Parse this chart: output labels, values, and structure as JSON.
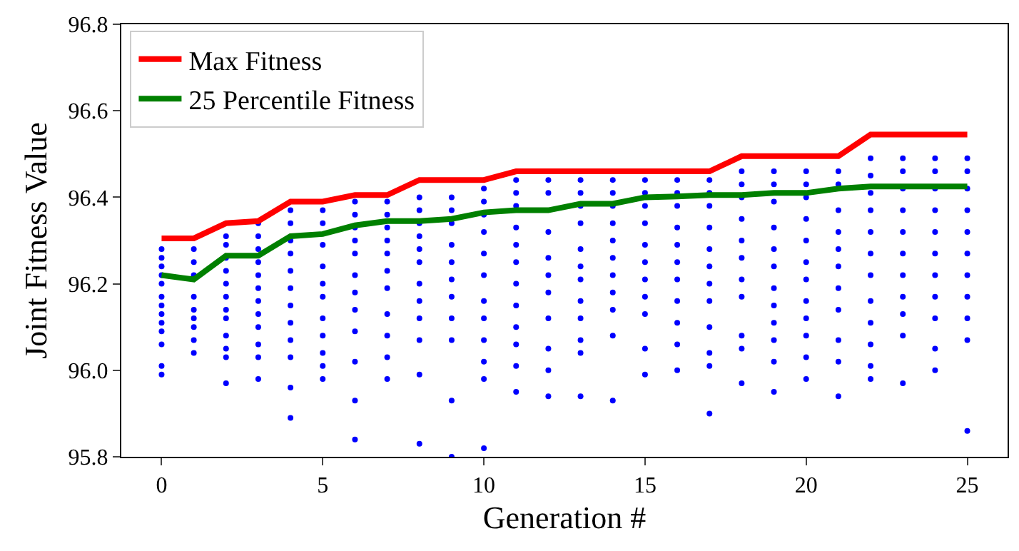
{
  "chart_data": {
    "type": "line",
    "xlabel": "Generation #",
    "ylabel": "Joint Fitness Value",
    "xlim": [
      -1.25,
      26.25
    ],
    "xticks": [
      0,
      5,
      10,
      15,
      20,
      25
    ],
    "ylim": [
      95.8,
      96.8
    ],
    "yticks": [
      {
        "value": 95.8,
        "label": "95.8"
      },
      {
        "value": 96.0,
        "label": "96.0"
      },
      {
        "value": 96.2,
        "label": "96.2"
      },
      {
        "value": 96.4,
        "label": "96.4"
      },
      {
        "value": 96.6,
        "label": "96.6"
      },
      {
        "value": 96.8,
        "label": "96.8"
      }
    ],
    "grid": false,
    "legend": "top left",
    "line_style": "solid",
    "series": [
      {
        "type": "scatter",
        "marker": "circle",
        "color": "#0000ff",
        "x": [
          0,
          0,
          0,
          0,
          0,
          0,
          0,
          0,
          0,
          0,
          0,
          0,
          0,
          1,
          1,
          1,
          1,
          1,
          1,
          1,
          1,
          1,
          2,
          2,
          2,
          2,
          2,
          2,
          2,
          2,
          2,
          2,
          2,
          2,
          3,
          3,
          3,
          3,
          3,
          3,
          3,
          3,
          3,
          3,
          3,
          3,
          4,
          4,
          4,
          4,
          4,
          4,
          4,
          4,
          4,
          4,
          4,
          4,
          5,
          5,
          5,
          5,
          5,
          5,
          5,
          5,
          5,
          5,
          5,
          6,
          6,
          6,
          6,
          6,
          6,
          6,
          6,
          6,
          6,
          6,
          6,
          7,
          7,
          7,
          7,
          7,
          7,
          7,
          7,
          7,
          7,
          7,
          8,
          8,
          8,
          8,
          8,
          8,
          8,
          8,
          8,
          8,
          8,
          8,
          9,
          9,
          9,
          9,
          9,
          9,
          9,
          9,
          9,
          9,
          9,
          10,
          10,
          10,
          10,
          10,
          10,
          10,
          10,
          10,
          10,
          10,
          10,
          11,
          11,
          11,
          11,
          11,
          11,
          11,
          11,
          11,
          11,
          11,
          11,
          12,
          12,
          12,
          12,
          12,
          12,
          12,
          12,
          12,
          12,
          13,
          13,
          13,
          13,
          13,
          13,
          13,
          13,
          13,
          13,
          13,
          13,
          14,
          14,
          14,
          14,
          14,
          14,
          14,
          14,
          14,
          14,
          14,
          15,
          15,
          15,
          15,
          15,
          15,
          15,
          15,
          15,
          15,
          15,
          16,
          16,
          16,
          16,
          16,
          16,
          16,
          16,
          16,
          16,
          16,
          17,
          17,
          17,
          17,
          17,
          17,
          17,
          17,
          17,
          17,
          17,
          17,
          18,
          18,
          18,
          18,
          18,
          18,
          18,
          18,
          18,
          18,
          18,
          19,
          19,
          19,
          19,
          19,
          19,
          19,
          19,
          19,
          19,
          19,
          19,
          20,
          20,
          20,
          20,
          20,
          20,
          20,
          20,
          20,
          20,
          20,
          20,
          21,
          21,
          21,
          21,
          21,
          21,
          21,
          21,
          21,
          21,
          21,
          22,
          22,
          22,
          22,
          22,
          22,
          22,
          22,
          22,
          22,
          22,
          22,
          23,
          23,
          23,
          23,
          23,
          23,
          23,
          23,
          23,
          23,
          23,
          24,
          24,
          24,
          24,
          24,
          24,
          24,
          24,
          24,
          24,
          24,
          25,
          25,
          25,
          25,
          25,
          25,
          25,
          25,
          25,
          25,
          25
        ],
        "values": [
          96.28,
          96.26,
          96.24,
          96.22,
          96.2,
          96.17,
          96.15,
          96.13,
          96.11,
          96.09,
          96.06,
          96.01,
          95.99,
          96.28,
          96.25,
          96.22,
          96.17,
          96.14,
          96.12,
          96.1,
          96.07,
          96.04,
          96.31,
          96.29,
          96.26,
          96.23,
          96.2,
          96.17,
          96.14,
          96.12,
          96.08,
          96.05,
          96.03,
          95.97,
          96.34,
          96.31,
          96.28,
          96.25,
          96.22,
          96.19,
          96.16,
          96.13,
          96.1,
          96.06,
          96.03,
          95.98,
          96.37,
          96.34,
          96.3,
          96.27,
          96.23,
          96.19,
          96.15,
          96.11,
          96.07,
          96.03,
          95.96,
          95.89,
          96.37,
          96.34,
          96.29,
          96.24,
          96.2,
          96.17,
          96.12,
          96.08,
          96.04,
          96.01,
          95.98,
          96.39,
          96.36,
          96.33,
          96.3,
          96.27,
          96.22,
          96.18,
          96.14,
          96.09,
          96.02,
          95.93,
          95.84,
          96.39,
          96.36,
          96.33,
          96.3,
          96.27,
          96.23,
          96.19,
          96.13,
          96.08,
          96.03,
          95.98,
          96.4,
          96.37,
          96.34,
          96.31,
          96.28,
          96.25,
          96.2,
          96.16,
          96.12,
          96.07,
          95.99,
          95.83,
          96.4,
          96.37,
          96.34,
          96.29,
          96.25,
          96.21,
          96.17,
          96.12,
          96.07,
          95.93,
          95.8,
          96.42,
          96.39,
          96.36,
          96.32,
          96.27,
          96.22,
          96.16,
          96.12,
          96.07,
          96.02,
          95.98,
          95.82,
          96.44,
          96.41,
          96.38,
          96.33,
          96.29,
          96.25,
          96.2,
          96.15,
          96.1,
          96.06,
          96.01,
          95.95,
          96.44,
          96.41,
          96.32,
          96.26,
          96.22,
          96.18,
          96.12,
          96.05,
          96.0,
          95.94,
          96.44,
          96.41,
          96.38,
          96.34,
          96.28,
          96.24,
          96.21,
          96.16,
          96.12,
          96.07,
          96.04,
          95.94,
          96.44,
          96.41,
          96.38,
          96.34,
          96.3,
          96.26,
          96.22,
          96.18,
          96.14,
          96.08,
          95.93,
          96.44,
          96.41,
          96.38,
          96.34,
          96.29,
          96.25,
          96.21,
          96.17,
          96.13,
          96.05,
          95.99,
          96.44,
          96.41,
          96.38,
          96.33,
          96.29,
          96.25,
          96.21,
          96.16,
          96.11,
          96.06,
          96.0,
          96.44,
          96.41,
          96.38,
          96.33,
          96.28,
          96.24,
          96.2,
          96.16,
          96.1,
          96.04,
          96.01,
          95.9,
          96.46,
          96.43,
          96.4,
          96.35,
          96.3,
          96.26,
          96.21,
          96.17,
          96.08,
          96.05,
          95.97,
          96.46,
          96.43,
          96.39,
          96.33,
          96.28,
          96.24,
          96.19,
          96.15,
          96.11,
          96.07,
          96.02,
          95.95,
          96.46,
          96.43,
          96.4,
          96.35,
          96.3,
          96.25,
          96.21,
          96.16,
          96.12,
          96.08,
          96.03,
          95.98,
          96.46,
          96.43,
          96.37,
          96.32,
          96.28,
          96.24,
          96.19,
          96.14,
          96.07,
          96.02,
          95.94,
          96.49,
          96.45,
          96.41,
          96.37,
          96.32,
          96.27,
          96.22,
          96.16,
          96.11,
          96.06,
          96.01,
          95.98,
          96.49,
          96.46,
          96.42,
          96.37,
          96.32,
          96.27,
          96.22,
          96.17,
          96.13,
          96.08,
          95.97,
          96.49,
          96.46,
          96.42,
          96.37,
          96.32,
          96.27,
          96.22,
          96.17,
          96.12,
          96.05,
          96.0,
          96.49,
          96.46,
          96.42,
          96.37,
          96.32,
          96.27,
          96.22,
          96.17,
          96.12,
          96.07,
          95.86
        ]
      },
      {
        "name": "Max Fitness",
        "color": "#ff0000",
        "x": [
          0,
          1,
          2,
          3,
          4,
          5,
          6,
          7,
          8,
          9,
          10,
          11,
          12,
          13,
          14,
          15,
          16,
          17,
          18,
          19,
          20,
          21,
          22,
          23,
          24,
          25
        ],
        "values": [
          96.305,
          96.305,
          96.34,
          96.345,
          96.39,
          96.39,
          96.405,
          96.405,
          96.44,
          96.44,
          96.44,
          96.46,
          96.46,
          96.46,
          96.46,
          96.46,
          96.46,
          96.46,
          96.495,
          96.495,
          96.495,
          96.495,
          96.545,
          96.545,
          96.545,
          96.545
        ]
      },
      {
        "name": "25 Percentile Fitness",
        "color": "#008000",
        "x": [
          0,
          1,
          2,
          3,
          4,
          5,
          6,
          7,
          8,
          9,
          10,
          11,
          12,
          13,
          14,
          15,
          16,
          17,
          18,
          19,
          20,
          21,
          22,
          23,
          24,
          25
        ],
        "values": [
          96.22,
          96.21,
          96.265,
          96.265,
          96.31,
          96.315,
          96.335,
          96.345,
          96.345,
          96.35,
          96.365,
          96.37,
          96.37,
          96.385,
          96.385,
          96.4,
          96.402,
          96.405,
          96.405,
          96.41,
          96.41,
          96.42,
          96.425,
          96.425,
          96.425,
          96.425
        ]
      }
    ]
  }
}
